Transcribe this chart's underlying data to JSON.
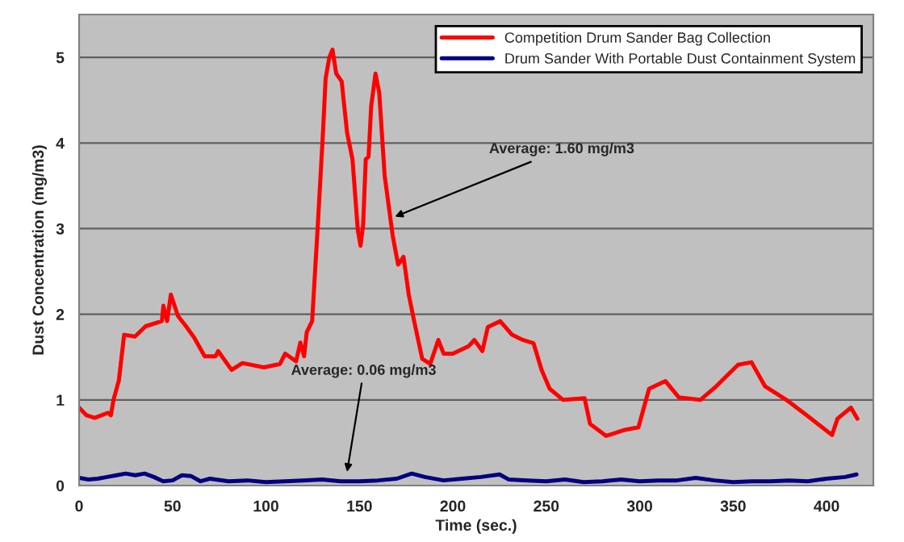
{
  "chart_data": {
    "type": "line",
    "xlabel": "Time (sec.)",
    "ylabel": "Dust Concentration (mg/m3)",
    "xlim": [
      0,
      425
    ],
    "xticks": [
      0,
      50,
      100,
      150,
      200,
      250,
      300,
      350,
      400
    ],
    "ylim": [
      0,
      5.5
    ],
    "yticks": [
      0,
      1,
      2,
      3,
      4,
      5
    ],
    "grid": "y",
    "legend": "top right",
    "marker": "none",
    "line_style": "solid",
    "annotations": [
      {
        "text": "Average: 1.60 mg/m3",
        "x": 169,
        "y": 3.14
      },
      {
        "text": "Average: 0.06 mg/m3",
        "x": 143.4,
        "y": 0.16
      }
    ],
    "series": [
      {
        "name": "Competition Drum Sander Bag Collection",
        "color": "#ff0000",
        "x": [
          0,
          4,
          8.3,
          15.5,
          17,
          18.4,
          21.3,
          24.1,
          29.9,
          35.6,
          44.3,
          45.1,
          47.1,
          49.1,
          52.9,
          57.2,
          61.5,
          67.2,
          73,
          74.4,
          81.6,
          87.4,
          98.9,
          107.5,
          110.3,
          116.1,
          118.4,
          120.4,
          121.8,
          124.7,
          127.6,
          130.5,
          131.9,
          133.9,
          135.6,
          137.6,
          140.5,
          143.4,
          146.3,
          149.1,
          150.6,
          152,
          153.4,
          154.9,
          156.3,
          158.6,
          160.6,
          163.5,
          167.8,
          170.7,
          173.6,
          176.4,
          179.3,
          183.6,
          187.9,
          192.2,
          195.1,
          200,
          208.6,
          211.5,
          215.8,
          218.7,
          225.3,
          231.7,
          237.4,
          243.2,
          247.5,
          251.8,
          259,
          270.5,
          273.4,
          282,
          292.1,
          299.3,
          305,
          313.7,
          320.9,
          332.4,
          341,
          352.6,
          359.8,
          367,
          378.5,
          390,
          402.9,
          405.8,
          413,
          416.5
        ],
        "values": [
          0.91,
          0.82,
          0.79,
          0.85,
          0.82,
          1.0,
          1.23,
          1.76,
          1.74,
          1.86,
          1.92,
          2.1,
          1.92,
          2.23,
          1.98,
          1.86,
          1.73,
          1.51,
          1.51,
          1.57,
          1.35,
          1.43,
          1.38,
          1.42,
          1.54,
          1.45,
          1.67,
          1.51,
          1.79,
          1.92,
          2.99,
          4.12,
          4.75,
          5.0,
          5.09,
          4.81,
          4.72,
          4.12,
          3.81,
          2.99,
          2.8,
          3.05,
          3.81,
          3.84,
          4.43,
          4.81,
          4.59,
          3.62,
          2.92,
          2.58,
          2.67,
          2.23,
          1.92,
          1.48,
          1.42,
          1.7,
          1.54,
          1.54,
          1.63,
          1.7,
          1.57,
          1.85,
          1.92,
          1.76,
          1.7,
          1.66,
          1.35,
          1.13,
          1.0,
          1.02,
          0.72,
          0.58,
          0.65,
          0.68,
          1.13,
          1.22,
          1.03,
          1.0,
          1.16,
          1.41,
          1.44,
          1.16,
          1.0,
          0.81,
          0.59,
          0.78,
          0.91,
          0.78
        ]
      },
      {
        "name": "Drum Sander With Portable Dust Containment System",
        "color": "#000080",
        "x": [
          0,
          5,
          10,
          15,
          20,
          25,
          30,
          35,
          40,
          45,
          50,
          55,
          60,
          65,
          70,
          80,
          90,
          100,
          110,
          120,
          130,
          140,
          150,
          160,
          170,
          178,
          185,
          195,
          205,
          215,
          225,
          230,
          240,
          250,
          260,
          270,
          280,
          290,
          300,
          310,
          320,
          330,
          340,
          350,
          360,
          370,
          380,
          390,
          400,
          410,
          416
        ],
        "values": [
          0.09,
          0.07,
          0.08,
          0.1,
          0.12,
          0.14,
          0.12,
          0.14,
          0.1,
          0.05,
          0.06,
          0.12,
          0.11,
          0.05,
          0.08,
          0.05,
          0.06,
          0.04,
          0.05,
          0.06,
          0.07,
          0.05,
          0.05,
          0.06,
          0.08,
          0.14,
          0.1,
          0.06,
          0.08,
          0.1,
          0.13,
          0.07,
          0.06,
          0.05,
          0.07,
          0.04,
          0.05,
          0.07,
          0.05,
          0.06,
          0.06,
          0.09,
          0.06,
          0.04,
          0.05,
          0.05,
          0.06,
          0.05,
          0.08,
          0.1,
          0.13
        ]
      }
    ]
  }
}
